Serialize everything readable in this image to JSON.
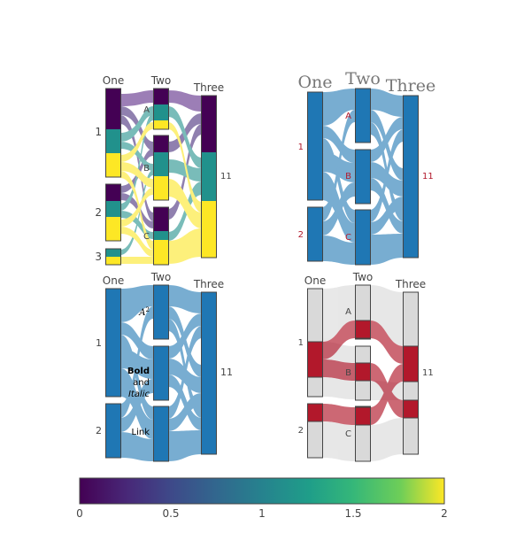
{
  "chart_data": [
    {
      "type": "parallel-categories",
      "panel": "top-left",
      "dimensions": [
        {
          "label": "One",
          "categories": [
            "1",
            "2",
            "3"
          ]
        },
        {
          "label": "Two",
          "categories": [
            "A",
            "B",
            "C"
          ]
        },
        {
          "label": "Three",
          "categories": [
            "11"
          ]
        }
      ],
      "color": "viridis"
    },
    {
      "type": "parallel-categories",
      "panel": "top-right",
      "dimensions": [
        {
          "label": "One",
          "categories": [
            "1",
            "2"
          ]
        },
        {
          "label": "Two",
          "categories": [
            "A",
            "B",
            "C"
          ]
        },
        {
          "label": "Three",
          "categories": [
            "11"
          ]
        }
      ]
    },
    {
      "type": "parallel-categories",
      "panel": "bottom-left",
      "dimensions": [
        {
          "label": "One",
          "categories": [
            "1",
            "2"
          ]
        },
        {
          "label": "Two",
          "categories": [
            "A2",
            "Bold",
            "Link"
          ]
        },
        {
          "label": "Three",
          "categories": [
            "11"
          ]
        }
      ],
      "rich_labels": {
        "a": "A",
        "a_sup": "2",
        "bold": "Bold",
        "and": "and",
        "italic": "Italic",
        "link": "Link"
      }
    },
    {
      "type": "parallel-categories",
      "panel": "bottom-right",
      "dimensions": [
        {
          "label": "One",
          "categories": [
            "1",
            "2"
          ]
        },
        {
          "label": "Two",
          "categories": [
            "A",
            "B",
            "C"
          ]
        },
        {
          "label": "Three",
          "categories": [
            "11"
          ]
        }
      ],
      "highlight_color": "#b2182b"
    }
  ],
  "colorbar": {
    "range": [
      0,
      2
    ],
    "ticks": [
      "0",
      "0.5",
      "1",
      "1.5",
      "2"
    ],
    "colorscale": "viridis"
  }
}
